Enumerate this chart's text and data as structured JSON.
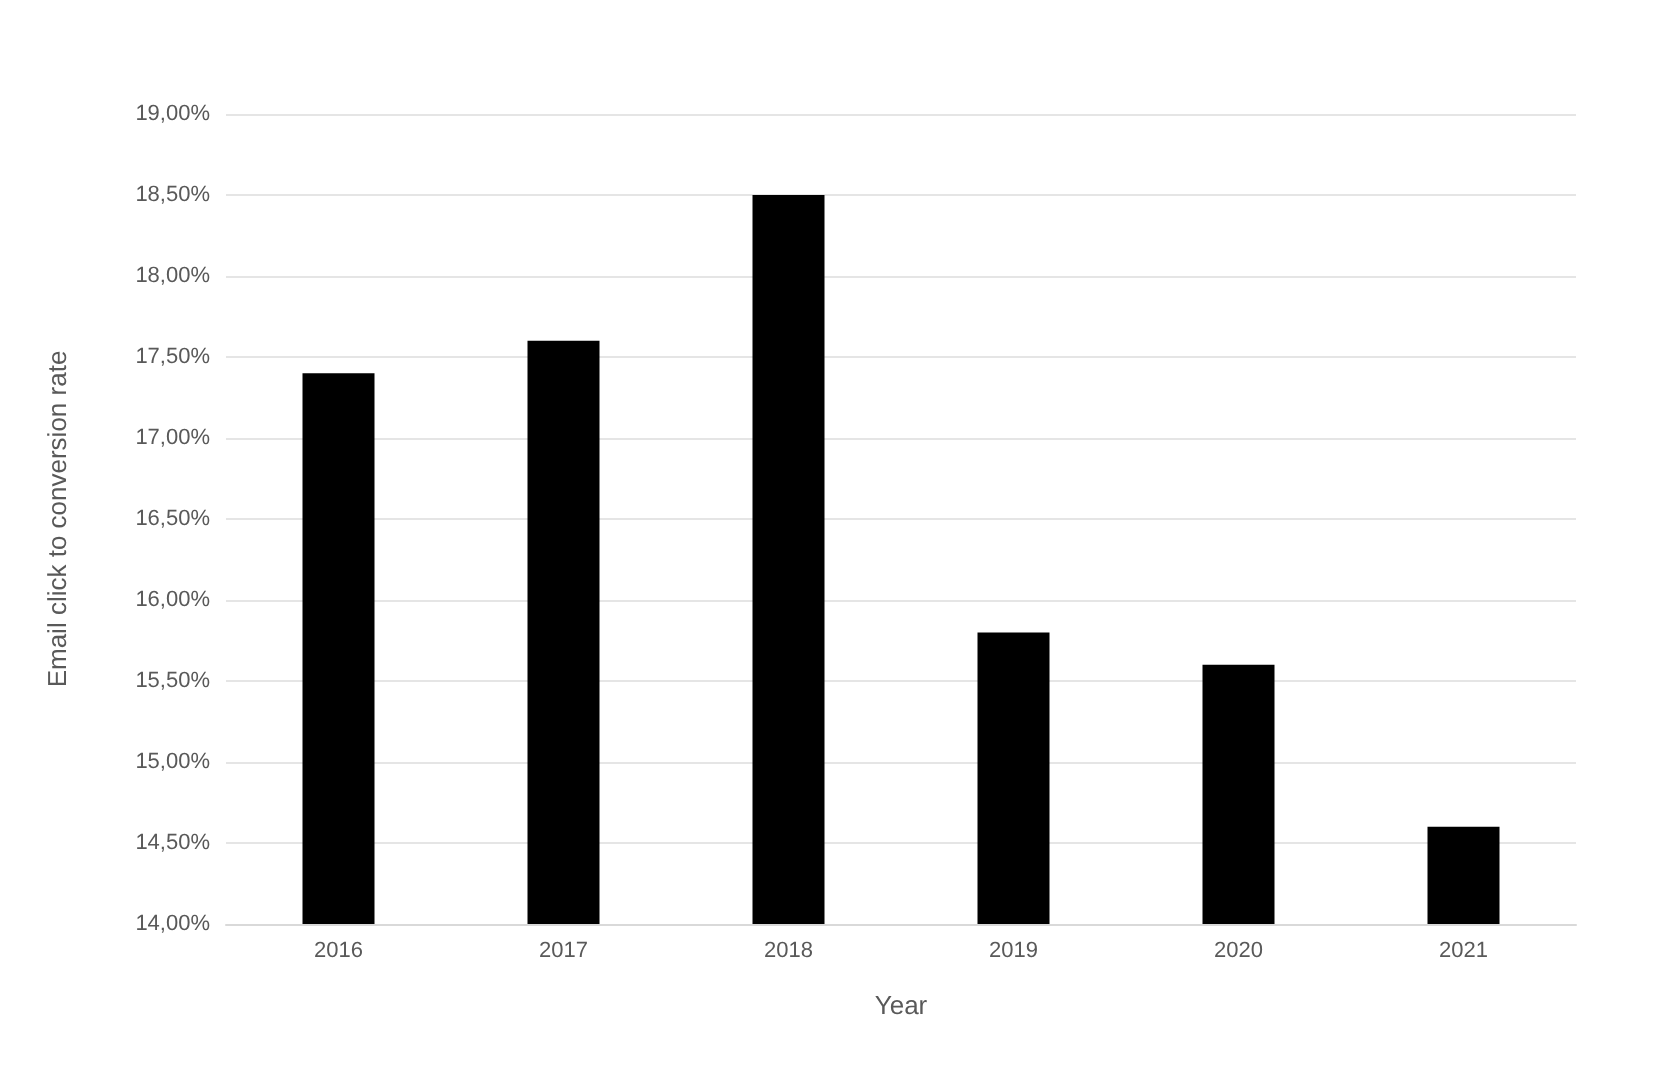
{
  "chart_data": {
    "type": "bar",
    "xlabel": "Year",
    "ylabel": "Email click to conversion rate",
    "categories": [
      "2016",
      "2017",
      "2018",
      "2019",
      "2020",
      "2021"
    ],
    "values": [
      17.4,
      17.6,
      18.5,
      15.8,
      15.6,
      14.6
    ],
    "color": "#000000",
    "ylim": [
      14,
      19
    ],
    "yticks": [
      {
        "value": 14,
        "label": "14,00%"
      },
      {
        "value": 14.5,
        "label": "14,50%"
      },
      {
        "value": 15,
        "label": "15,00%"
      },
      {
        "value": 15.5,
        "label": "15,50%"
      },
      {
        "value": 16,
        "label": "16,00%"
      },
      {
        "value": 16.5,
        "label": "16,50%"
      },
      {
        "value": 17,
        "label": "17,00%"
      },
      {
        "value": 17.5,
        "label": "17,50%"
      },
      {
        "value": 18,
        "label": "18,00%"
      },
      {
        "value": 18.5,
        "label": "18,50%"
      },
      {
        "value": 19,
        "label": "19,00%"
      }
    ],
    "grid": "y"
  }
}
